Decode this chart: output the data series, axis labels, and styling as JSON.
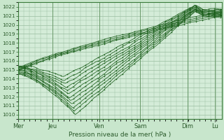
{
  "title": "",
  "xlabel": "Pression niveau de la mer( hPa )",
  "ylabel": "",
  "bg_color": "#c8e6cc",
  "plot_bg_color": "#d4ecd8",
  "line_color": "#1a5e1a",
  "grid_color": "#9abea0",
  "ylim": [
    1009.5,
    1022.5
  ],
  "yticks": [
    1010,
    1011,
    1012,
    1013,
    1014,
    1015,
    1016,
    1017,
    1018,
    1019,
    1020,
    1021,
    1022
  ],
  "days": [
    "Mer",
    "Jeu",
    "Ven",
    "Sam",
    "Dim",
    "Lu"
  ],
  "day_positions": [
    0.0,
    0.167,
    0.4,
    0.6,
    0.833,
    0.967
  ],
  "n_points": 200,
  "x_max": 1.0,
  "figwidth": 3.2,
  "figheight": 2.0,
  "dpi": 100
}
